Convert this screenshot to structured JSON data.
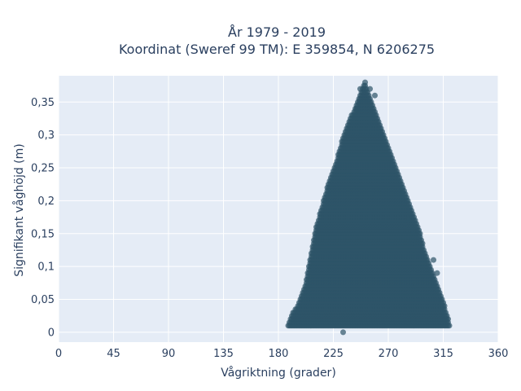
{
  "chart_data": {
    "type": "scatter",
    "title": "År 1979 - 2019",
    "subtitle": "Koordinat (Sweref 99 TM): E 359854, N 6206275",
    "xlabel": "Vågriktning (grader)",
    "ylabel": "Signifikant våghöjd (m)",
    "xlim": [
      0,
      360
    ],
    "ylim": [
      -0.015,
      0.39
    ],
    "x_ticks": [
      0,
      45,
      90,
      135,
      180,
      225,
      270,
      315,
      360
    ],
    "x_tick_labels": [
      "0",
      "45",
      "90",
      "135",
      "180",
      "225",
      "270",
      "315",
      "360"
    ],
    "y_ticks": [
      0,
      0.05,
      0.1,
      0.15,
      0.2,
      0.25,
      0.3,
      0.35
    ],
    "y_tick_labels": [
      "0",
      "0,05",
      "0,1",
      "0,15",
      "0,2",
      "0,25",
      "0,3",
      "0,35"
    ],
    "grid": true,
    "plot_background": "#e5ecf6",
    "marker_color": "#2e5468",
    "envelope": [
      [
        188,
        0.01
      ],
      [
        190,
        0.02
      ],
      [
        192,
        0.03
      ],
      [
        196,
        0.04
      ],
      [
        200,
        0.06
      ],
      [
        203,
        0.08
      ],
      [
        205,
        0.1
      ],
      [
        207,
        0.12
      ],
      [
        209,
        0.14
      ],
      [
        211,
        0.16
      ],
      [
        214,
        0.18
      ],
      [
        217,
        0.2
      ],
      [
        220,
        0.22
      ],
      [
        224,
        0.24
      ],
      [
        229,
        0.27
      ],
      [
        232,
        0.29
      ],
      [
        236,
        0.31
      ],
      [
        240,
        0.33
      ],
      [
        245,
        0.35
      ],
      [
        251,
        0.38
      ],
      [
        256,
        0.35
      ],
      [
        260,
        0.33
      ],
      [
        264,
        0.31
      ],
      [
        268,
        0.29
      ],
      [
        272,
        0.27
      ],
      [
        276,
        0.25
      ],
      [
        280,
        0.23
      ],
      [
        284,
        0.21
      ],
      [
        288,
        0.19
      ],
      [
        292,
        0.17
      ],
      [
        296,
        0.15
      ],
      [
        300,
        0.12
      ],
      [
        304,
        0.1
      ],
      [
        308,
        0.08
      ],
      [
        312,
        0.06
      ],
      [
        316,
        0.04
      ],
      [
        319,
        0.02
      ],
      [
        320,
        0.01
      ]
    ],
    "x_step": 1,
    "y_step": 0.005,
    "outliers": [
      [
        233,
        0.0
      ],
      [
        286,
        0.17
      ],
      [
        310,
        0.09
      ],
      [
        307,
        0.11
      ],
      [
        255,
        0.37
      ],
      [
        247,
        0.37
      ],
      [
        244,
        0.34
      ],
      [
        259,
        0.36
      ]
    ]
  }
}
